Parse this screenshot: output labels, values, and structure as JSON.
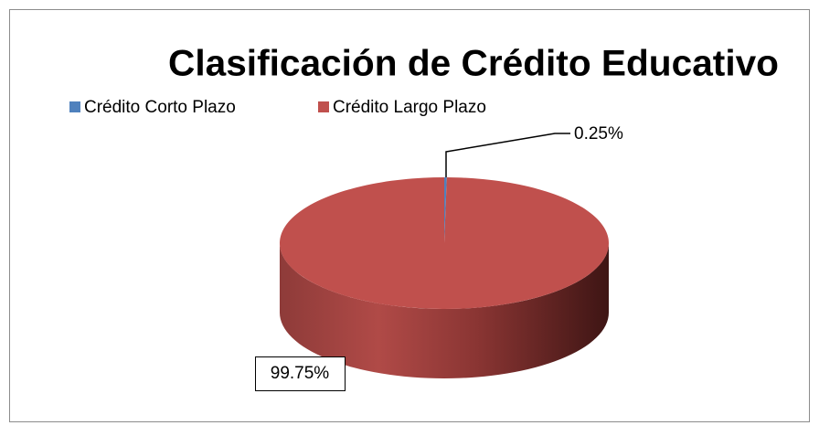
{
  "chart_data": {
    "type": "pie",
    "title": "Clasificación de Crédito Educativo",
    "categories": [
      "Crédito Corto Plazo",
      "Crédito Largo Plazo"
    ],
    "values": [
      0.25,
      99.75
    ],
    "value_labels": [
      "0.25%",
      "99.75%"
    ],
    "colors": [
      "#4f81bd",
      "#c0504d"
    ],
    "legend": "top"
  }
}
